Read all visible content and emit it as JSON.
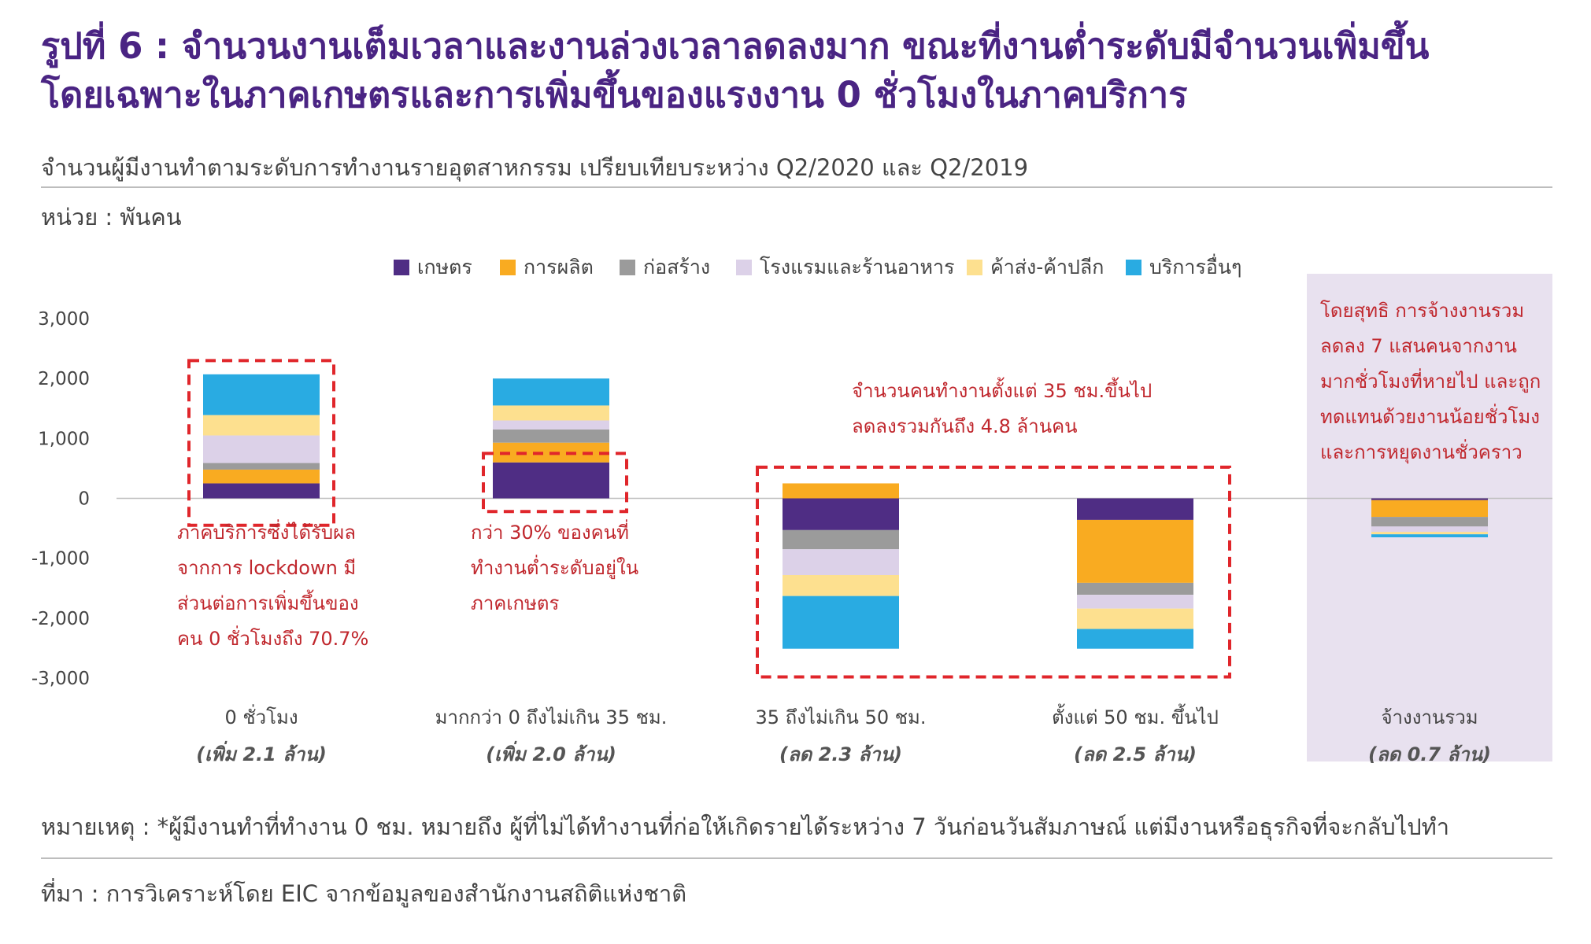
{
  "title_lines": [
    "รูปที่ 6 : จำนวนงานเต็มเวลาและงานล่วงเวลาลดลงมาก ขณะที่งานต่ำระดับมีจำนวนเพิ่มขึ้น",
    "โดยเฉพาะในภาคเกษตรและการเพิ่มขึ้นของแรงงาน 0 ชั่วโมงในภาคบริการ"
  ],
  "subtitle": "จำนวนผู้มีงานทำตามระดับการทำงานรายอุตสาหกรรม เปรียบเทียบระหว่าง Q2/2020 และ Q2/2019",
  "unit_label": "หน่วย : พันคน",
  "note": "หมายเหตุ : *ผู้มีงานทำที่ทำงาน 0 ชม. หมายถึง ผู้ที่ไม่ได้ทำงานที่ก่อให้เกิดรายได้ระหว่าง 7 วันก่อนวันสัมภาษณ์ แต่มีงานหรือธุรกิจที่จะกลับไปทำ",
  "source": "ที่มา : การวิเคราะห์โดย EIC จากข้อมูลของสำนักงานสถิติแห่งชาติ",
  "annotations": {
    "zero_hours": [
      "ภาคบริการซึ่งได้รับผล",
      "จากการ lockdown มี",
      "ส่วนต่อการเพิ่มขึ้นของ",
      "คน 0 ชั่วโมงถึง 70.7%"
    ],
    "under_35": [
      "กว่า 30% ของคนที่",
      "ทำงานต่ำระดับอยู่ใน",
      "ภาคเกษตร"
    ],
    "over_35": [
      "จำนวนคนทำงานตั้งแต่ 35 ชม.ขึ้นไป",
      "ลดลงรวมกันถึง 4.8 ล้านคน"
    ],
    "net_total": [
      "โดยสุทธิ การจ้างงานรวม",
      "ลดลง 7 แสนคนจากงาน",
      "มากชั่วโมงที่หายไป และถูก",
      "ทดแทนด้วยงานน้อยชั่วโมง",
      "และการหยุดงานชั่วคราว"
    ]
  },
  "colors": {
    "title": "#4a2483",
    "annotation": "#c0272d",
    "highlight_box": "#e0262b",
    "panel": "#e8e1ef",
    "axis_text": "#444444",
    "zero_line": "#bfbfbf"
  },
  "chart_data": {
    "type": "bar",
    "stacked": true,
    "categories": [
      "0 ชั่วโมง",
      "มากกว่า 0 ถึงไม่เกิน 35 ชม.",
      "35 ถึงไม่เกิน 50 ชม.",
      "ตั้งแต่ 50 ชม. ขึ้นไป",
      "จ้างงานรวม"
    ],
    "category_subtitles": [
      "(เพิ่ม 2.1 ล้าน)",
      "(เพิ่ม 2.0 ล้าน)",
      "(ลด 2.3 ล้าน)",
      "(ลด 2.5 ล้าน)",
      "(ลด 0.7 ล้าน)"
    ],
    "series": [
      {
        "name": "เกษตร",
        "color": "#4f2d84",
        "values": [
          250,
          600,
          -530,
          -360,
          -30
        ]
      },
      {
        "name": "การผลิต",
        "color": "#f9ab21",
        "values": [
          230,
          330,
          250,
          -1050,
          -280
        ]
      },
      {
        "name": "ก่อสร้าง",
        "color": "#9b9b9b",
        "values": [
          110,
          220,
          -320,
          -200,
          -160
        ]
      },
      {
        "name": "โรงแรมและร้านอาหาร",
        "color": "#dcd1e8",
        "values": [
          460,
          150,
          -430,
          -230,
          -90
        ]
      },
      {
        "name": "ค้าส่ง-ค้าปลีก",
        "color": "#fde08f",
        "values": [
          340,
          250,
          -350,
          -340,
          -40
        ]
      },
      {
        "name": "บริการอื่นๆ",
        "color": "#29abe2",
        "values": [
          680,
          450,
          -880,
          -330,
          -50
        ]
      }
    ],
    "ylim": [
      -3000,
      3000
    ],
    "yticks": [
      3000,
      2000,
      1000,
      0,
      -1000,
      -2000,
      -3000
    ],
    "ytick_labels": [
      "3,000",
      "2,000",
      "1,000",
      "0",
      "-1,000",
      "-2,000",
      "-3,000"
    ],
    "grid": false,
    "legend_position": "top-center"
  }
}
